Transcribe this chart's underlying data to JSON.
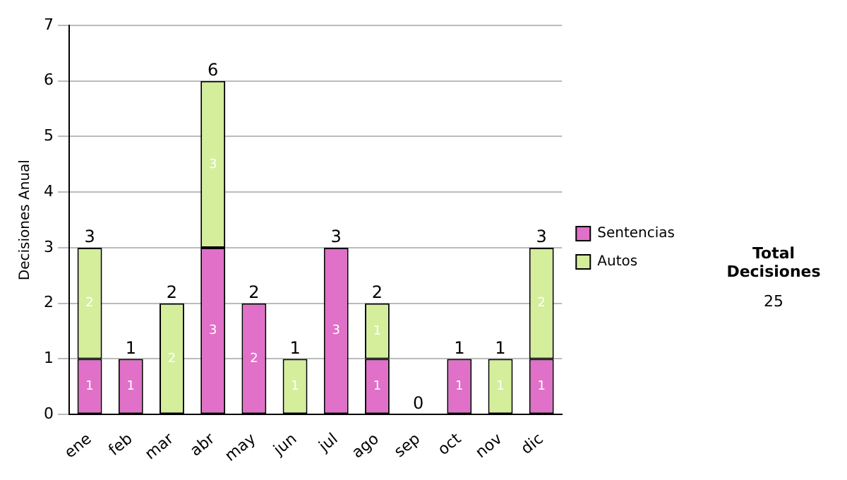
{
  "chart_data": {
    "type": "bar",
    "stacked": true,
    "ylabel": "Decisiones Anual",
    "categories": [
      "ene",
      "feb",
      "mar",
      "abr",
      "may",
      "jun",
      "jul",
      "ago",
      "sep",
      "oct",
      "nov",
      "dic"
    ],
    "series": [
      {
        "name": "Sentencias",
        "color": "#e070c8",
        "values": [
          1,
          1,
          0,
          3,
          2,
          0,
          3,
          1,
          0,
          1,
          0,
          1
        ],
        "value_labels": [
          "1",
          "1",
          null,
          "3",
          "2",
          null,
          "3",
          "1",
          null,
          "1",
          null,
          "1"
        ]
      },
      {
        "name": "Autos",
        "color": "#d4ee9c",
        "values": [
          2,
          0,
          2,
          3,
          0,
          1,
          0,
          1,
          0,
          0,
          1,
          2
        ],
        "value_labels": [
          "2",
          null,
          "2",
          "3",
          null,
          "1",
          null,
          "1",
          null,
          null,
          "1",
          "2"
        ]
      }
    ],
    "totals": [
      "3",
      "1",
      "2",
      "6",
      "2",
      "1",
      "3",
      "2",
      "0",
      "1",
      "1",
      "3"
    ],
    "ylim": [
      0,
      7
    ],
    "yticks": [
      0,
      1,
      2,
      3,
      4,
      5,
      6,
      7
    ],
    "grid": "y",
    "legend": "right",
    "annotations": [
      "Total Decisiones",
      "25"
    ]
  }
}
